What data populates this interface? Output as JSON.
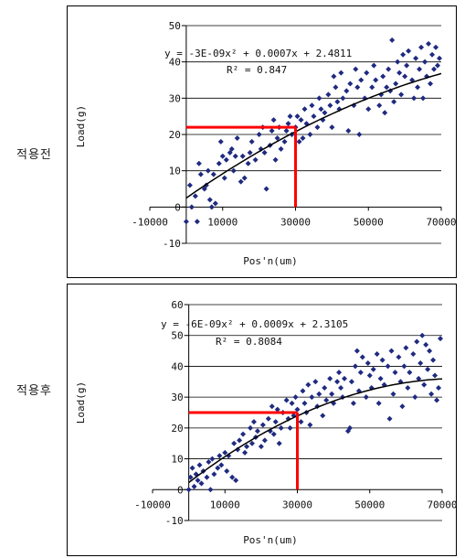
{
  "labels": {
    "top": "적용전",
    "bottom": "적용후"
  },
  "colors": {
    "points": "#1f2a80",
    "trend": "#000000",
    "highlight": "#ff0000",
    "grid": "#000000"
  },
  "chart_data": [
    {
      "type": "scatter",
      "title": "",
      "xlabel": "Pos'n(um)",
      "ylabel": "Load(g)",
      "xlim": [
        -10000,
        70000
      ],
      "ylim": [
        -10,
        50
      ],
      "xticks": [
        -10000,
        10000,
        30000,
        50000,
        70000
      ],
      "yticks": [
        -10,
        0,
        10,
        20,
        30,
        40,
        50
      ],
      "grid": "horizontal",
      "equation": "y = -3E-09x² + 0.0007x + 2.4811",
      "r2": "R² = 0.847",
      "trend": {
        "a": -3e-09,
        "b": 0.0007,
        "c": 2.4811
      },
      "highlight_x": 30000,
      "highlight_y": 22,
      "points": [
        [
          0,
          -4
        ],
        [
          1000,
          6
        ],
        [
          1500,
          0
        ],
        [
          2500,
          3
        ],
        [
          3000,
          -4
        ],
        [
          3500,
          12
        ],
        [
          4000,
          9
        ],
        [
          5000,
          5
        ],
        [
          5500,
          6
        ],
        [
          6000,
          10
        ],
        [
          6500,
          2
        ],
        [
          7000,
          0
        ],
        [
          7500,
          9
        ],
        [
          8000,
          1
        ],
        [
          9000,
          12
        ],
        [
          9500,
          18
        ],
        [
          10000,
          14
        ],
        [
          10500,
          8
        ],
        [
          11000,
          13
        ],
        [
          12000,
          15
        ],
        [
          12500,
          16
        ],
        [
          13000,
          10
        ],
        [
          13500,
          14
        ],
        [
          14000,
          19
        ],
        [
          15000,
          7
        ],
        [
          15500,
          14
        ],
        [
          16000,
          8
        ],
        [
          17000,
          12
        ],
        [
          17500,
          15
        ],
        [
          18000,
          18
        ],
        [
          19000,
          13
        ],
        [
          20000,
          20
        ],
        [
          20500,
          16
        ],
        [
          21000,
          22
        ],
        [
          21500,
          15
        ],
        [
          22000,
          5
        ],
        [
          23000,
          17
        ],
        [
          23500,
          21
        ],
        [
          24000,
          24
        ],
        [
          24500,
          13
        ],
        [
          25000,
          19
        ],
        [
          25500,
          22
        ],
        [
          26000,
          16
        ],
        [
          27000,
          18
        ],
        [
          27500,
          21
        ],
        [
          28000,
          23
        ],
        [
          28500,
          25
        ],
        [
          29000,
          20
        ],
        [
          30000,
          22
        ],
        [
          30500,
          25
        ],
        [
          31000,
          18
        ],
        [
          31500,
          24
        ],
        [
          32000,
          19
        ],
        [
          32500,
          27
        ],
        [
          33000,
          23
        ],
        [
          34000,
          20
        ],
        [
          34500,
          28
        ],
        [
          35000,
          25
        ],
        [
          36000,
          22
        ],
        [
          36500,
          30
        ],
        [
          37000,
          27
        ],
        [
          37500,
          24
        ],
        [
          38000,
          26
        ],
        [
          39000,
          31
        ],
        [
          39500,
          28
        ],
        [
          40000,
          22
        ],
        [
          40500,
          36
        ],
        [
          41000,
          33
        ],
        [
          41500,
          29
        ],
        [
          42000,
          27
        ],
        [
          42500,
          37
        ],
        [
          43000,
          30
        ],
        [
          44000,
          32
        ],
        [
          44500,
          21
        ],
        [
          45000,
          34
        ],
        [
          46000,
          28
        ],
        [
          46500,
          38
        ],
        [
          47000,
          33
        ],
        [
          47500,
          20
        ],
        [
          48000,
          35
        ],
        [
          49000,
          30
        ],
        [
          49500,
          37
        ],
        [
          50000,
          27
        ],
        [
          51000,
          33
        ],
        [
          51500,
          39
        ],
        [
          52000,
          35
        ],
        [
          53000,
          28
        ],
        [
          53500,
          31
        ],
        [
          54000,
          36
        ],
        [
          54500,
          26
        ],
        [
          55000,
          33
        ],
        [
          55500,
          38
        ],
        [
          56000,
          32
        ],
        [
          56500,
          46
        ],
        [
          57000,
          29
        ],
        [
          57500,
          34
        ],
        [
          58000,
          40
        ],
        [
          58500,
          37
        ],
        [
          59000,
          31
        ],
        [
          59500,
          42
        ],
        [
          60000,
          36
        ],
        [
          60500,
          39
        ],
        [
          61000,
          43
        ],
        [
          62000,
          35
        ],
        [
          62500,
          30
        ],
        [
          63000,
          41
        ],
        [
          63500,
          33
        ],
        [
          64000,
          38
        ],
        [
          64500,
          44
        ],
        [
          65000,
          30
        ],
        [
          65500,
          40
        ],
        [
          66000,
          36
        ],
        [
          66500,
          45
        ],
        [
          67000,
          34
        ],
        [
          67500,
          42
        ],
        [
          68000,
          38
        ],
        [
          68500,
          44
        ],
        [
          69000,
          39
        ],
        [
          69500,
          41
        ]
      ]
    },
    {
      "type": "scatter",
      "title": "",
      "xlabel": "Pos'n(um)",
      "ylabel": "Load(g)",
      "xlim": [
        -10000,
        70000
      ],
      "ylim": [
        -10,
        60
      ],
      "xticks": [
        -10000,
        10000,
        30000,
        50000,
        70000
      ],
      "yticks": [
        -10,
        0,
        10,
        20,
        30,
        40,
        50,
        60
      ],
      "grid": "horizontal",
      "equation": "y = -6E-09x² + 0.0009x + 2.3105",
      "r2": "R² = 0.8084",
      "trend": {
        "a": -6e-09,
        "b": 0.0009,
        "c": 2.3105
      },
      "highlight_x": 30000,
      "highlight_y": 25,
      "points": [
        [
          0,
          0
        ],
        [
          500,
          4
        ],
        [
          1000,
          7
        ],
        [
          1500,
          1
        ],
        [
          2000,
          5
        ],
        [
          2500,
          3
        ],
        [
          3000,
          8
        ],
        [
          3500,
          2
        ],
        [
          4000,
          6
        ],
        [
          5000,
          4
        ],
        [
          5500,
          9
        ],
        [
          6000,
          0
        ],
        [
          6500,
          10
        ],
        [
          7000,
          5
        ],
        [
          8000,
          7
        ],
        [
          8500,
          11
        ],
        [
          9000,
          8
        ],
        [
          10000,
          12
        ],
        [
          10500,
          6
        ],
        [
          11000,
          11
        ],
        [
          12000,
          4
        ],
        [
          12500,
          15
        ],
        [
          13000,
          3
        ],
        [
          13500,
          13
        ],
        [
          14000,
          16
        ],
        [
          15000,
          18
        ],
        [
          15500,
          12
        ],
        [
          16000,
          14
        ],
        [
          17000,
          20
        ],
        [
          17500,
          15
        ],
        [
          18000,
          22
        ],
        [
          18500,
          17
        ],
        [
          19000,
          19
        ],
        [
          20000,
          14
        ],
        [
          20500,
          21
        ],
        [
          21000,
          16
        ],
        [
          22000,
          23
        ],
        [
          22500,
          19
        ],
        [
          23000,
          27
        ],
        [
          23500,
          18
        ],
        [
          24000,
          22
        ],
        [
          24500,
          26
        ],
        [
          25000,
          15
        ],
        [
          25500,
          20
        ],
        [
          26000,
          25
        ],
        [
          27000,
          29
        ],
        [
          27500,
          23
        ],
        [
          28000,
          20
        ],
        [
          28500,
          28
        ],
        [
          29000,
          24
        ],
        [
          29500,
          30
        ],
        [
          30000,
          26
        ],
        [
          31000,
          22
        ],
        [
          31500,
          32
        ],
        [
          32000,
          28
        ],
        [
          32500,
          25
        ],
        [
          33000,
          34
        ],
        [
          33500,
          21
        ],
        [
          34000,
          30
        ],
        [
          35000,
          35
        ],
        [
          35500,
          27
        ],
        [
          36000,
          31
        ],
        [
          37000,
          24
        ],
        [
          37500,
          33
        ],
        [
          38000,
          29
        ],
        [
          39000,
          36
        ],
        [
          39500,
          31
        ],
        [
          40000,
          28
        ],
        [
          41000,
          35
        ],
        [
          41500,
          38
        ],
        [
          42000,
          33
        ],
        [
          42500,
          30
        ],
        [
          43000,
          36
        ],
        [
          44000,
          19
        ],
        [
          44500,
          20
        ],
        [
          45000,
          35
        ],
        [
          45500,
          28
        ],
        [
          46000,
          40
        ],
        [
          46500,
          45
        ],
        [
          47000,
          32
        ],
        [
          47500,
          38
        ],
        [
          48000,
          43
        ],
        [
          49000,
          30
        ],
        [
          49500,
          41
        ],
        [
          50000,
          37
        ],
        [
          50500,
          33
        ],
        [
          51000,
          39
        ],
        [
          52000,
          44
        ],
        [
          52500,
          28
        ],
        [
          53000,
          36
        ],
        [
          53500,
          42
        ],
        [
          54000,
          34
        ],
        [
          55000,
          40
        ],
        [
          55500,
          23
        ],
        [
          56000,
          45
        ],
        [
          56500,
          31
        ],
        [
          57000,
          38
        ],
        [
          58000,
          43
        ],
        [
          58500,
          35
        ],
        [
          59000,
          27
        ],
        [
          59500,
          40
        ],
        [
          60000,
          46
        ],
        [
          60500,
          33
        ],
        [
          61000,
          38
        ],
        [
          62000,
          44
        ],
        [
          62500,
          30
        ],
        [
          63000,
          48
        ],
        [
          63500,
          36
        ],
        [
          64000,
          41
        ],
        [
          64500,
          50
        ],
        [
          65000,
          34
        ],
        [
          65500,
          47
        ],
        [
          66000,
          39
        ],
        [
          66500,
          45
        ],
        [
          67000,
          31
        ],
        [
          67500,
          42
        ],
        [
          68000,
          37
        ],
        [
          68500,
          29
        ],
        [
          69000,
          33
        ],
        [
          69500,
          49
        ]
      ]
    }
  ]
}
